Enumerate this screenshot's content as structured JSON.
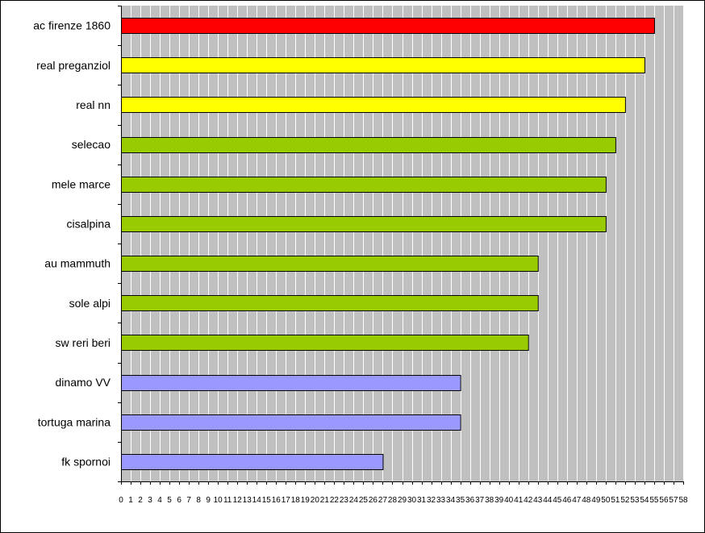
{
  "chart_data": {
    "type": "bar",
    "orientation": "horizontal",
    "title": "",
    "xlabel": "",
    "ylabel": "",
    "xlim": [
      0,
      58
    ],
    "x_ticks": [
      0,
      1,
      2,
      3,
      4,
      5,
      6,
      7,
      8,
      9,
      10,
      11,
      12,
      13,
      14,
      15,
      16,
      17,
      18,
      19,
      20,
      21,
      22,
      23,
      24,
      25,
      26,
      27,
      28,
      29,
      30,
      31,
      32,
      33,
      34,
      35,
      36,
      37,
      38,
      39,
      40,
      41,
      42,
      43,
      44,
      45,
      46,
      47,
      48,
      49,
      50,
      51,
      52,
      53,
      54,
      55,
      56,
      57,
      58
    ],
    "grid": "vertical gridlines at every integer",
    "plot_background": "#c0c0c0",
    "legend": "none",
    "categories": [
      "ac firenze 1860",
      "real preganziol",
      "real nn",
      "selecao",
      "mele marce",
      "cisalpina",
      "au mammuth",
      "sole alpi",
      "sw reri beri",
      "dinamo VV",
      "tortuga marina",
      "fk spornoi"
    ],
    "values": [
      55,
      54,
      52,
      51,
      50,
      50,
      43,
      43,
      42,
      35,
      35,
      27
    ],
    "bar_colors": [
      "#ff0000",
      "#ffff00",
      "#ffff00",
      "#99cc00",
      "#99cc00",
      "#99cc00",
      "#99cc00",
      "#99cc00",
      "#99cc00",
      "#9999ff",
      "#9999ff",
      "#9999ff"
    ]
  }
}
